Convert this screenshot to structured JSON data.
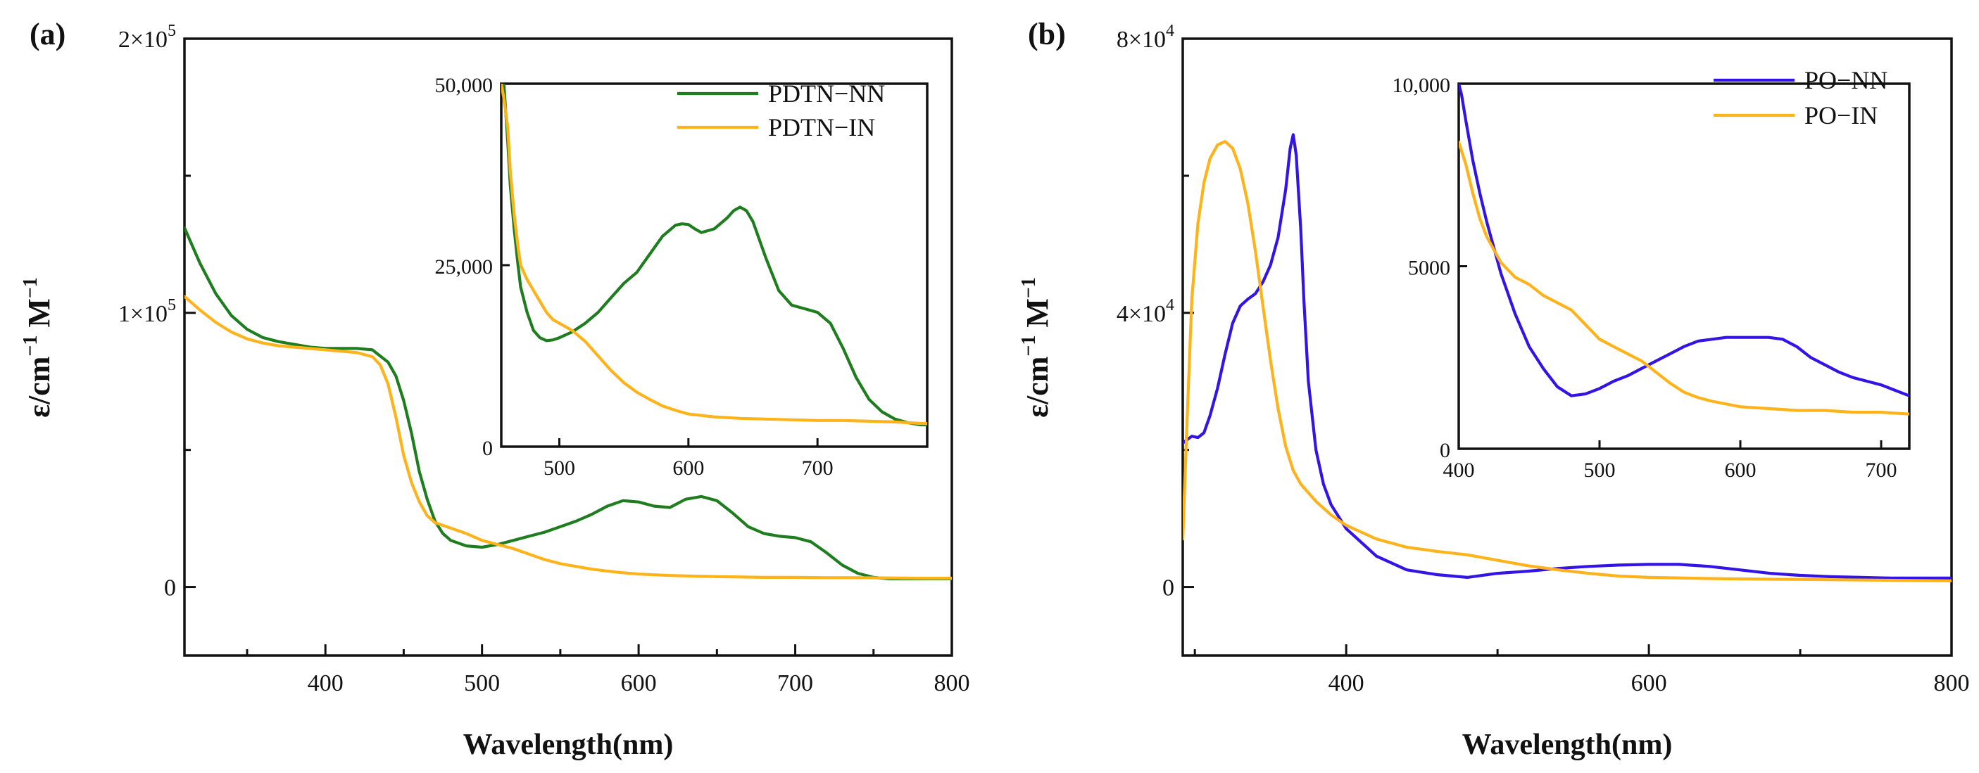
{
  "figure": {
    "colors": {
      "green": "#1e7d1e",
      "orange": "#ffb31a",
      "blue": "#3314e6"
    }
  },
  "chart_data": [
    {
      "type": "line",
      "panel_label": "(a)",
      "xlabel": "Wavelength(nm)",
      "ylabel_main": "ε/cm",
      "ylabel_exp": "−1",
      "ylabel_unit": " M",
      "xlim": [
        310,
        800
      ],
      "ylim": [
        -25000,
        200000
      ],
      "xticks": [
        {
          "v": 400,
          "t": "400"
        },
        {
          "v": 500,
          "t": "500"
        },
        {
          "v": 600,
          "t": "600"
        },
        {
          "v": 700,
          "t": "700"
        },
        {
          "v": 800,
          "t": "800"
        }
      ],
      "yticks": [
        {
          "v": 0,
          "t": "0"
        },
        {
          "v": 100000,
          "t": "1×10",
          "e": "5"
        },
        {
          "v": 200000,
          "t": "2×10",
          "e": "5"
        }
      ],
      "series": [
        {
          "name": "PDTN−NN",
          "color": "#1e7d1e",
          "x": [
            310,
            320,
            330,
            340,
            350,
            360,
            370,
            380,
            390,
            400,
            410,
            420,
            430,
            440,
            445,
            450,
            455,
            460,
            465,
            470,
            475,
            480,
            490,
            500,
            510,
            520,
            530,
            540,
            550,
            560,
            570,
            580,
            590,
            600,
            610,
            620,
            630,
            640,
            650,
            660,
            670,
            680,
            690,
            700,
            710,
            720,
            730,
            740,
            750,
            760,
            770,
            780,
            790,
            800
          ],
          "y": [
            131000,
            118000,
            107000,
            99000,
            94000,
            91000,
            89500,
            88500,
            87500,
            87000,
            87000,
            87000,
            86500,
            82000,
            77000,
            68000,
            56000,
            42000,
            32000,
            24000,
            19500,
            17000,
            15000,
            14500,
            15500,
            17000,
            18500,
            20000,
            22000,
            24000,
            26500,
            29500,
            31500,
            31000,
            29500,
            29000,
            32000,
            33000,
            31500,
            27000,
            22000,
            19500,
            18500,
            18000,
            16500,
            12500,
            8000,
            5000,
            3500,
            3000,
            3000,
            3000,
            3000,
            3000
          ]
        },
        {
          "name": "PDTN−IN",
          "color": "#ffb31a",
          "x": [
            310,
            320,
            330,
            340,
            350,
            360,
            370,
            380,
            390,
            400,
            410,
            420,
            430,
            435,
            440,
            445,
            450,
            455,
            460,
            465,
            470,
            480,
            490,
            500,
            510,
            520,
            530,
            540,
            550,
            560,
            570,
            580,
            590,
            600,
            620,
            640,
            660,
            680,
            700,
            720,
            740,
            760,
            780,
            800
          ],
          "y": [
            106000,
            101000,
            96500,
            93000,
            90500,
            89000,
            88000,
            87500,
            87000,
            86500,
            86000,
            85500,
            84000,
            81000,
            74000,
            62000,
            48000,
            38000,
            31000,
            26000,
            23500,
            21500,
            19500,
            17000,
            15500,
            14000,
            12000,
            10000,
            8500,
            7500,
            6500,
            5800,
            5200,
            4700,
            4200,
            3900,
            3700,
            3500,
            3500,
            3400,
            3400,
            3300,
            3200,
            3200
          ]
        }
      ],
      "inset": {
        "xlim": [
          455,
          785
        ],
        "ylim": [
          0,
          50000
        ],
        "xticks": [
          {
            "v": 500,
            "t": "500"
          },
          {
            "v": 600,
            "t": "600"
          },
          {
            "v": 700,
            "t": "700"
          }
        ],
        "yticks": [
          {
            "v": 0,
            "t": "0"
          },
          {
            "v": 25000,
            "t": "25,000"
          },
          {
            "v": 50000,
            "t": "50,000"
          }
        ],
        "series": [
          {
            "name": "PDTN−NN",
            "color": "#1e7d1e",
            "x": [
              455,
              457,
              460,
              462,
              465,
              468,
              470,
              475,
              480,
              485,
              490,
              495,
              500,
              510,
              520,
              530,
              540,
              550,
              560,
              570,
              580,
              590,
              595,
              600,
              605,
              610,
              620,
              630,
              635,
              640,
              645,
              650,
              655,
              660,
              670,
              680,
              690,
              700,
              710,
              720,
              730,
              740,
              750,
              760,
              770,
              780,
              785
            ],
            "y": [
              50000,
              50000,
              42000,
              36000,
              30000,
              25000,
              22000,
              18500,
              16000,
              15000,
              14600,
              14700,
              15000,
              15800,
              17000,
              18500,
              20500,
              22500,
              24000,
              26500,
              29000,
              30500,
              30700,
              30600,
              30000,
              29500,
              30000,
              31500,
              32500,
              33000,
              32500,
              31000,
              28500,
              26000,
              21500,
              19500,
              19000,
              18500,
              17000,
              13500,
              9500,
              6500,
              4800,
              3800,
              3300,
              3000,
              3000
            ]
          },
          {
            "name": "PDTN−IN",
            "color": "#ffb31a",
            "x": [
              455,
              457,
              460,
              462,
              465,
              468,
              470,
              475,
              480,
              485,
              490,
              495,
              500,
              510,
              520,
              530,
              540,
              550,
              560,
              570,
              580,
              590,
              600,
              620,
              640,
              660,
              680,
              700,
              720,
              740,
              760,
              780,
              785
            ],
            "y": [
              50000,
              48000,
              44000,
              38000,
              32000,
              27500,
              25000,
              23000,
              21500,
              20000,
              18500,
              17500,
              17000,
              16000,
              14500,
              12500,
              10500,
              8800,
              7500,
              6500,
              5600,
              5000,
              4500,
              4100,
              3900,
              3800,
              3700,
              3600,
              3600,
              3500,
              3400,
              3200,
              3200
            ]
          }
        ]
      },
      "legend": {
        "position": "inset-top-right"
      }
    },
    {
      "type": "line",
      "panel_label": "(b)",
      "xlabel": "Wavelength(nm)",
      "ylabel_main": "ε/cm",
      "ylabel_exp": "−1",
      "ylabel_unit": " M",
      "xlim": [
        292,
        800
      ],
      "ylim": [
        -10000,
        80000
      ],
      "xticks": [
        {
          "v": 400,
          "t": "400"
        },
        {
          "v": 600,
          "t": "600"
        },
        {
          "v": 800,
          "t": "800"
        }
      ],
      "yticks": [
        {
          "v": 0,
          "t": "0"
        },
        {
          "v": 40000,
          "t": "4×10",
          "e": "4"
        },
        {
          "v": 80000,
          "t": "8×10",
          "e": "4"
        }
      ],
      "series": [
        {
          "name": "PO−NN",
          "color": "#3314e6",
          "x": [
            292,
            295,
            298,
            302,
            306,
            310,
            315,
            320,
            325,
            330,
            335,
            340,
            345,
            350,
            355,
            360,
            363,
            365,
            367,
            370,
            372,
            375,
            380,
            385,
            390,
            400,
            410,
            420,
            440,
            460,
            480,
            500,
            520,
            540,
            560,
            580,
            600,
            620,
            640,
            660,
            680,
            700,
            720,
            740,
            760,
            780,
            800
          ],
          "y": [
            21000,
            21500,
            22000,
            21800,
            22500,
            25000,
            29000,
            34000,
            38500,
            41000,
            42000,
            42800,
            44500,
            47000,
            51000,
            58000,
            64000,
            66000,
            63000,
            52000,
            42000,
            30000,
            20000,
            15000,
            12000,
            8500,
            6500,
            4500,
            2500,
            1800,
            1400,
            2000,
            2300,
            2700,
            3000,
            3200,
            3300,
            3300,
            3000,
            2500,
            2000,
            1700,
            1500,
            1400,
            1300,
            1300,
            1300
          ]
        },
        {
          "name": "PO−IN",
          "color": "#ffb31a",
          "x": [
            292,
            295,
            298,
            302,
            306,
            310,
            315,
            320,
            325,
            330,
            335,
            340,
            345,
            350,
            355,
            360,
            365,
            370,
            380,
            390,
            400,
            420,
            440,
            460,
            480,
            500,
            520,
            540,
            560,
            580,
            600,
            650,
            700,
            750,
            800
          ],
          "y": [
            7000,
            25000,
            42000,
            53000,
            59000,
            62500,
            64500,
            65000,
            64000,
            61000,
            56000,
            49000,
            41000,
            33000,
            26000,
            20500,
            17000,
            15000,
            12500,
            10500,
            9000,
            7000,
            5800,
            5200,
            4700,
            3900,
            3100,
            2500,
            2000,
            1600,
            1400,
            1200,
            1100,
            1000,
            900
          ]
        }
      ],
      "inset": {
        "xlim": [
          400,
          720
        ],
        "ylim": [
          0,
          10000
        ],
        "xticks": [
          {
            "v": 400,
            "t": "400"
          },
          {
            "v": 500,
            "t": "500"
          },
          {
            "v": 600,
            "t": "600"
          },
          {
            "v": 700,
            "t": "700"
          }
        ],
        "yticks": [
          {
            "v": 0,
            "t": "0"
          },
          {
            "v": 5000,
            "t": "5000"
          },
          {
            "v": 10000,
            "t": "10,000"
          }
        ],
        "series": [
          {
            "name": "PO−NN",
            "color": "#3314e6",
            "x": [
              400,
              402,
              405,
              410,
              415,
              420,
              430,
              440,
              450,
              460,
              470,
              480,
              490,
              500,
              510,
              520,
              530,
              540,
              550,
              560,
              570,
              580,
              590,
              600,
              610,
              620,
              630,
              640,
              650,
              660,
              670,
              680,
              690,
              700,
              710,
              720
            ],
            "y": [
              10000,
              9700,
              9000,
              7900,
              7000,
              6200,
              4800,
              3700,
              2800,
              2200,
              1700,
              1450,
              1500,
              1650,
              1850,
              2000,
              2200,
              2400,
              2600,
              2800,
              2950,
              3000,
              3050,
              3050,
              3050,
              3050,
              3000,
              2800,
              2500,
              2300,
              2100,
              1950,
              1850,
              1750,
              1600,
              1450
            ]
          },
          {
            "name": "PO−IN",
            "color": "#ffb31a",
            "x": [
              400,
              405,
              410,
              415,
              420,
              430,
              440,
              450,
              460,
              470,
              480,
              490,
              500,
              510,
              520,
              530,
              540,
              550,
              560,
              570,
              580,
              600,
              620,
              640,
              660,
              680,
              700,
              720
            ],
            "y": [
              8400,
              7800,
              7000,
              6300,
              5800,
              5100,
              4700,
              4500,
              4200,
              4000,
              3800,
              3400,
              3000,
              2800,
              2600,
              2400,
              2100,
              1800,
              1550,
              1400,
              1300,
              1150,
              1100,
              1050,
              1050,
              1000,
              1000,
              950
            ]
          }
        ]
      },
      "legend": {
        "position": "inset-top-right"
      }
    }
  ]
}
